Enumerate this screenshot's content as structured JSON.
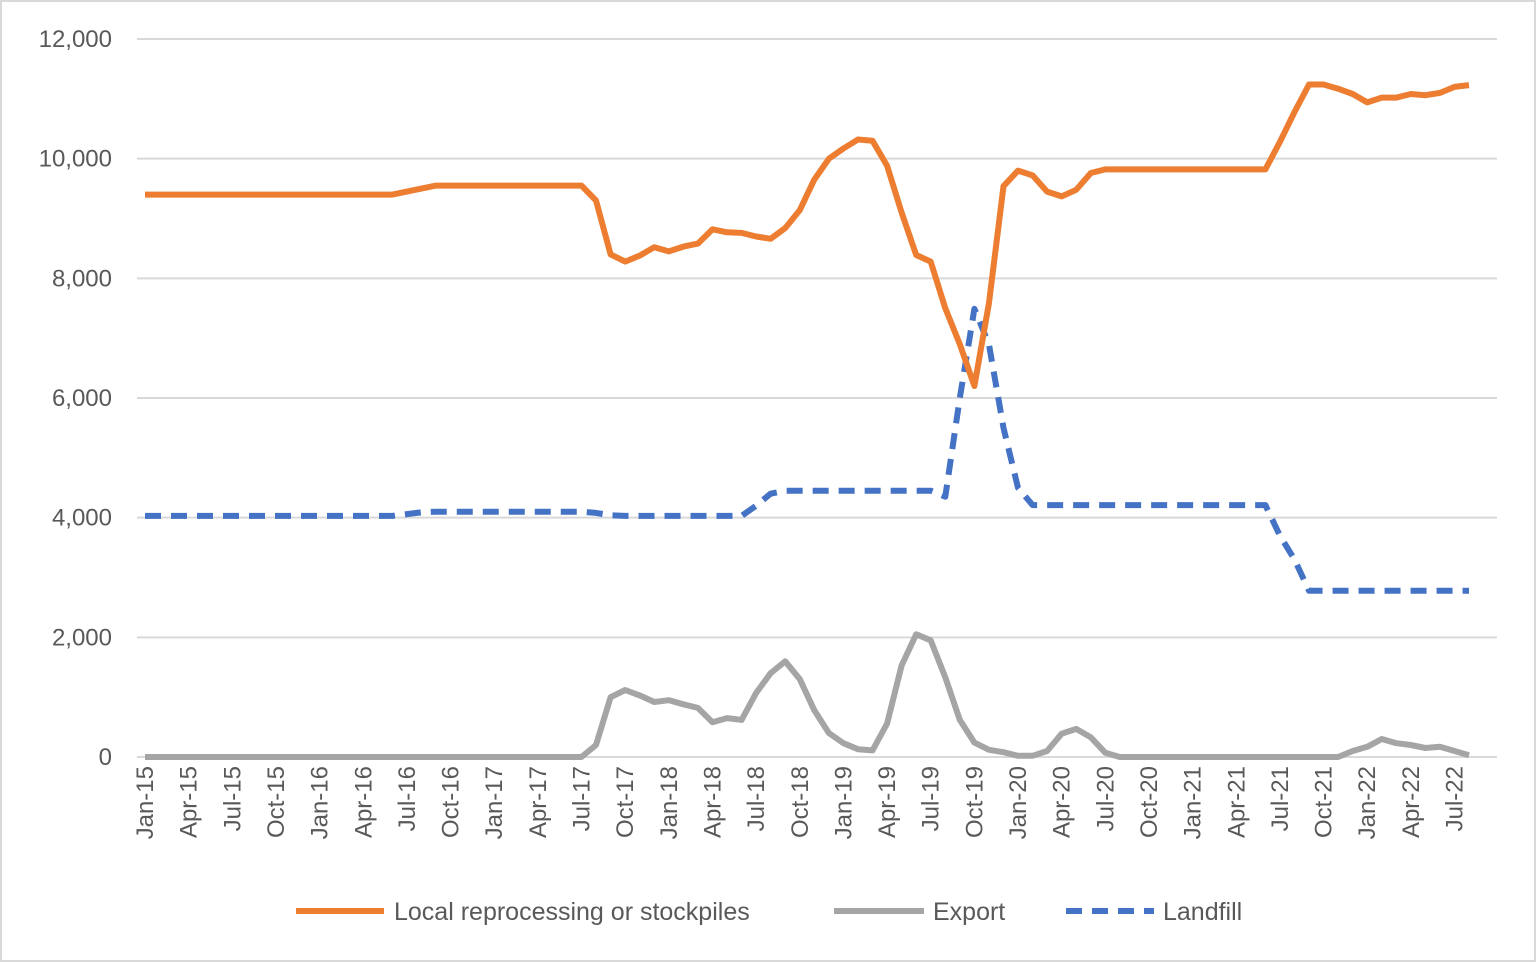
{
  "chart_data": {
    "type": "line",
    "title": "",
    "xlabel": "",
    "ylabel": "",
    "ylim": [
      0,
      12000
    ],
    "yticks": [
      0,
      2000,
      4000,
      6000,
      8000,
      10000,
      12000
    ],
    "ytick_labels": [
      "0",
      "2,000",
      "4,000",
      "6,000",
      "8,000",
      "10,000",
      "12,000"
    ],
    "grid": "horizontal",
    "legend": "bottom",
    "x_tick_labels": [
      "Jan-15",
      "Apr-15",
      "Jul-15",
      "Oct-15",
      "Jan-16",
      "Apr-16",
      "Jul-16",
      "Oct-16",
      "Jan-17",
      "Apr-17",
      "Jul-17",
      "Oct-17",
      "Jan-18",
      "Apr-18",
      "Jul-18",
      "Oct-18",
      "Jan-19",
      "Apr-19",
      "Jul-19",
      "Oct-19",
      "Jan-20",
      "Apr-20",
      "Jul-20",
      "Oct-20",
      "Jan-21",
      "Apr-21",
      "Jul-21",
      "Oct-21",
      "Jan-22",
      "Apr-22",
      "Jul-22"
    ],
    "x_start": "Jan-15",
    "x_end": "Aug-22",
    "series": [
      {
        "name": "Local reprocessing or stockpiles",
        "color": "#ED7D31",
        "style": "solid",
        "values": [
          9400,
          9400,
          9400,
          9400,
          9400,
          9400,
          9400,
          9400,
          9400,
          9400,
          9400,
          9400,
          9400,
          9400,
          9400,
          9400,
          9400,
          9400,
          9450,
          9500,
          9550,
          9550,
          9550,
          9550,
          9550,
          9550,
          9550,
          9550,
          9550,
          9550,
          9550,
          9300,
          8400,
          8280,
          8380,
          8520,
          8450,
          8530,
          8580,
          8820,
          8770,
          8760,
          8700,
          8660,
          8840,
          9140,
          9650,
          10000,
          10170,
          10320,
          10300,
          9880,
          9100,
          8390,
          8280,
          7500,
          6900,
          6200,
          7580,
          9540,
          9800,
          9720,
          9450,
          9370,
          9480,
          9760,
          9820,
          9820,
          9820,
          9820,
          9820,
          9820,
          9820,
          9820,
          9820,
          9820,
          9820,
          9820,
          10280,
          10780,
          11240,
          11240,
          11170,
          11080,
          10940,
          11020,
          11020,
          11080,
          11060,
          11100,
          11200,
          11230
        ]
      },
      {
        "name": "Export",
        "color": "#A5A5A5",
        "style": "solid",
        "values": [
          0,
          0,
          0,
          0,
          0,
          0,
          0,
          0,
          0,
          0,
          0,
          0,
          0,
          0,
          0,
          0,
          0,
          0,
          0,
          0,
          0,
          0,
          0,
          0,
          0,
          0,
          0,
          0,
          0,
          0,
          0,
          200,
          1000,
          1120,
          1030,
          920,
          950,
          880,
          820,
          580,
          650,
          620,
          1070,
          1400,
          1600,
          1300,
          780,
          400,
          230,
          130,
          110,
          560,
          1530,
          2050,
          1950,
          1330,
          620,
          240,
          120,
          80,
          20,
          20,
          100,
          390,
          470,
          330,
          70,
          0,
          0,
          0,
          0,
          0,
          0,
          0,
          0,
          0,
          0,
          0,
          0,
          0,
          0,
          0,
          0,
          100,
          170,
          300,
          230,
          200,
          150,
          170,
          100,
          30
        ]
      },
      {
        "name": "Landfill",
        "color": "#4472C4",
        "style": "dashed",
        "values": [
          4030,
          4030,
          4030,
          4030,
          4030,
          4030,
          4030,
          4030,
          4030,
          4030,
          4030,
          4030,
          4030,
          4030,
          4030,
          4030,
          4030,
          4030,
          4060,
          4090,
          4100,
          4100,
          4100,
          4100,
          4100,
          4100,
          4100,
          4100,
          4100,
          4100,
          4100,
          4080,
          4040,
          4030,
          4030,
          4030,
          4030,
          4030,
          4030,
          4030,
          4030,
          4030,
          4200,
          4400,
          4450,
          4450,
          4450,
          4450,
          4450,
          4450,
          4450,
          4450,
          4450,
          4450,
          4450,
          4350,
          6000,
          7490,
          6900,
          5500,
          4500,
          4210,
          4210,
          4210,
          4210,
          4210,
          4210,
          4210,
          4210,
          4210,
          4210,
          4210,
          4210,
          4210,
          4210,
          4210,
          4210,
          4210,
          3700,
          3300,
          2780,
          2780,
          2780,
          2780,
          2780,
          2780,
          2780,
          2780,
          2780,
          2780,
          2780,
          2780
        ]
      }
    ]
  }
}
